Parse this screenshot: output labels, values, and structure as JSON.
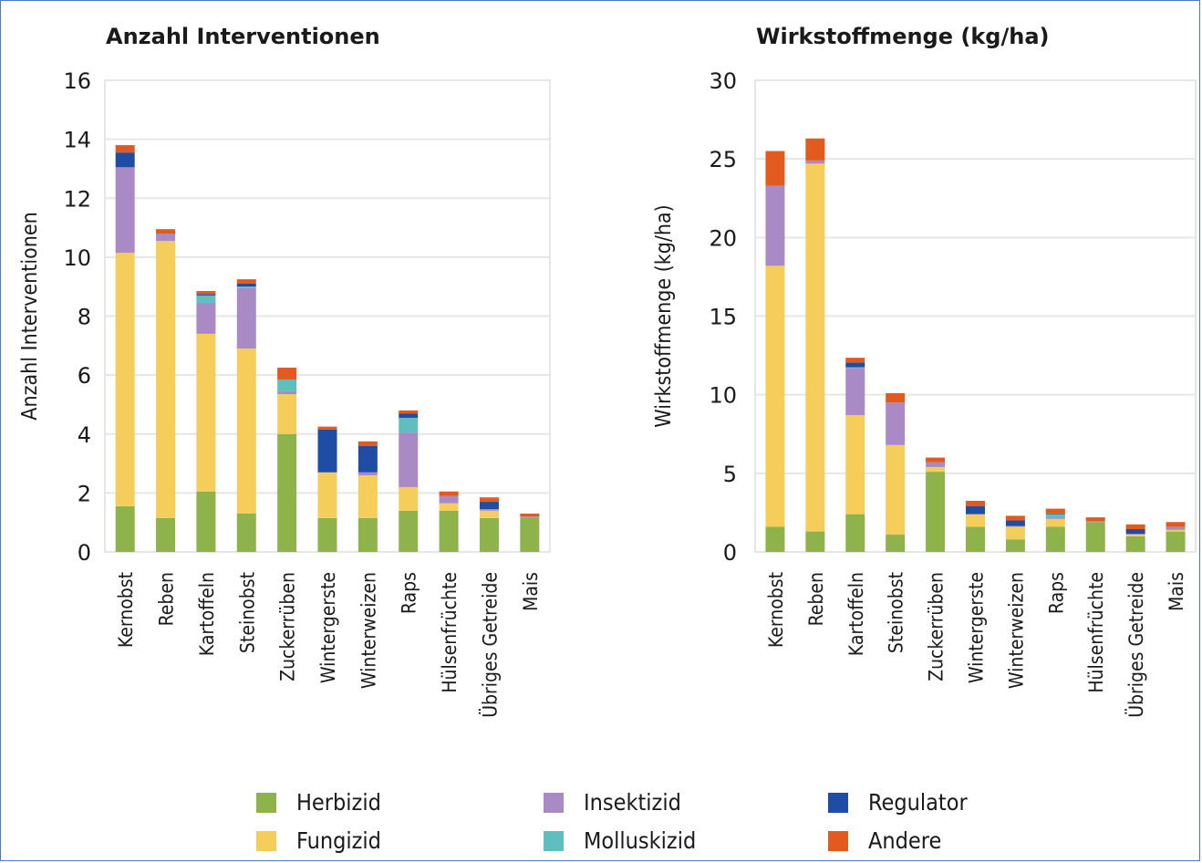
{
  "colors": {
    "Herbizid": "#8db34a",
    "Fungizid": "#f5cd5a",
    "Insektizid": "#a98ac5",
    "Molluskizid": "#5fbfbf",
    "Regulator": "#1f4da6",
    "Andere": "#e25a1e"
  },
  "legend": [
    {
      "name": "Herbizid"
    },
    {
      "name": "Fungizid"
    },
    {
      "name": "Insektizid"
    },
    {
      "name": "Molluskizid"
    },
    {
      "name": "Regulator"
    },
    {
      "name": "Andere"
    }
  ],
  "chart_data": [
    {
      "type": "bar",
      "stacked": true,
      "title": "Anzahl Interventionen",
      "ylabel": "Anzahl Interventionen",
      "xlabel": "",
      "ylim": [
        0,
        16
      ],
      "yticks": [
        0,
        2,
        4,
        6,
        8,
        10,
        12,
        14,
        16
      ],
      "grid": true,
      "categories": [
        "Kernobst",
        "Reben",
        "Kartoffeln",
        "Steinobst",
        "Zuckerrüben",
        "Wintergerste",
        "Winterweizen",
        "Raps",
        "Hülsenfrüchte",
        "Übriges Getreide",
        "Mais"
      ],
      "series": [
        {
          "name": "Herbizid",
          "values": [
            1.55,
            1.15,
            2.05,
            1.3,
            4.0,
            1.15,
            1.15,
            1.4,
            1.4,
            1.15,
            1.15
          ]
        },
        {
          "name": "Fungizid",
          "values": [
            8.6,
            9.4,
            5.35,
            5.6,
            1.35,
            1.55,
            1.45,
            0.8,
            0.25,
            0.25,
            0.0
          ]
        },
        {
          "name": "Insektizid",
          "values": [
            2.9,
            0.25,
            1.05,
            2.05,
            0.1,
            0.0,
            0.1,
            1.85,
            0.25,
            0.05,
            0.05
          ]
        },
        {
          "name": "Molluskizid",
          "values": [
            0.0,
            0.0,
            0.25,
            0.05,
            0.4,
            0.0,
            0.0,
            0.5,
            0.0,
            0.0,
            0.0
          ]
        },
        {
          "name": "Regulator",
          "values": [
            0.5,
            0.0,
            0.05,
            0.1,
            0.0,
            1.45,
            0.9,
            0.15,
            0.0,
            0.25,
            0.0
          ]
        },
        {
          "name": "Andere",
          "values": [
            0.25,
            0.15,
            0.1,
            0.15,
            0.4,
            0.1,
            0.15,
            0.1,
            0.15,
            0.15,
            0.1
          ]
        }
      ]
    },
    {
      "type": "bar",
      "stacked": true,
      "title": "Wirkstoffmenge (kg/ha)",
      "ylabel": "Wirkstoffmenge (kg/ha)",
      "xlabel": "",
      "ylim": [
        0,
        30
      ],
      "yticks": [
        0,
        5,
        10,
        15,
        20,
        25,
        30
      ],
      "grid": true,
      "categories": [
        "Kernobst",
        "Reben",
        "Kartoffeln",
        "Steinobst",
        "Zuckerrüben",
        "Wintergerste",
        "Winterweizen",
        "Raps",
        "Hülsenfrüchte",
        "Übriges Getreide",
        "Mais"
      ],
      "series": [
        {
          "name": "Herbizid",
          "values": [
            1.6,
            1.3,
            2.4,
            1.1,
            5.1,
            1.6,
            0.8,
            1.6,
            1.9,
            1.0,
            1.3
          ]
        },
        {
          "name": "Fungizid",
          "values": [
            16.6,
            23.4,
            6.3,
            5.7,
            0.3,
            0.8,
            0.8,
            0.5,
            0.0,
            0.1,
            0.1
          ]
        },
        {
          "name": "Insektizid",
          "values": [
            5.1,
            0.2,
            3.0,
            2.7,
            0.3,
            0.0,
            0.05,
            0.1,
            0.05,
            0.05,
            0.2
          ]
        },
        {
          "name": "Molluskizid",
          "values": [
            0.0,
            0.0,
            0.05,
            0.0,
            0.0,
            0.0,
            0.0,
            0.2,
            0.0,
            0.0,
            0.0
          ]
        },
        {
          "name": "Regulator",
          "values": [
            0.0,
            0.0,
            0.3,
            0.0,
            0.0,
            0.5,
            0.35,
            0.05,
            0.0,
            0.3,
            0.0
          ]
        },
        {
          "name": "Andere",
          "values": [
            2.2,
            1.4,
            0.3,
            0.6,
            0.3,
            0.35,
            0.3,
            0.3,
            0.25,
            0.3,
            0.3
          ]
        }
      ]
    }
  ]
}
